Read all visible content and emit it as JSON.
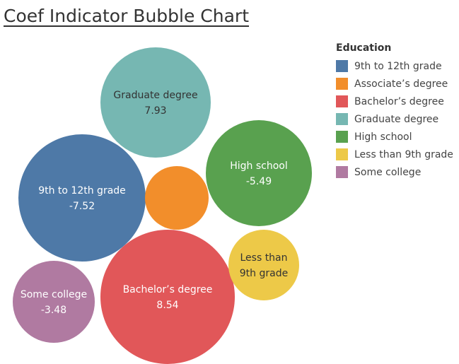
{
  "chart_data": {
    "type": "bubble",
    "title": "Coef Indicator Bubble Chart",
    "legend": {
      "title": "Education",
      "position": "top-right"
    },
    "series": [
      {
        "name": "9th to 12th grade",
        "value": "-7.52",
        "color": "#4E79A7",
        "label_lines": [
          "9th to 12th grade"
        ],
        "text_color": "#ffffff"
      },
      {
        "name": "Associate’s degree",
        "value": "",
        "color": "#F28E2B",
        "label_lines": [],
        "text_color": "#ffffff"
      },
      {
        "name": "Bachelor’s degree",
        "value": "8.54",
        "color": "#E15759",
        "label_lines": [
          "Bachelor’s degree"
        ],
        "text_color": "#ffffff"
      },
      {
        "name": "Graduate degree",
        "value": "7.93",
        "color": "#76B7B2",
        "label_lines": [
          "Graduate degree"
        ],
        "text_color": "#333333"
      },
      {
        "name": "High school",
        "value": "-5.49",
        "color": "#59A14F",
        "label_lines": [
          "High school"
        ],
        "text_color": "#ffffff"
      },
      {
        "name": "Less than 9th grade",
        "value": "",
        "color": "#EDC948",
        "label_lines": [
          "Less than",
          "9th grade"
        ],
        "text_color": "#333333"
      },
      {
        "name": "Some college",
        "value": "-3.48",
        "color": "#B07AA1",
        "label_lines": [
          "Some college"
        ],
        "text_color": "#ffffff"
      }
    ]
  }
}
